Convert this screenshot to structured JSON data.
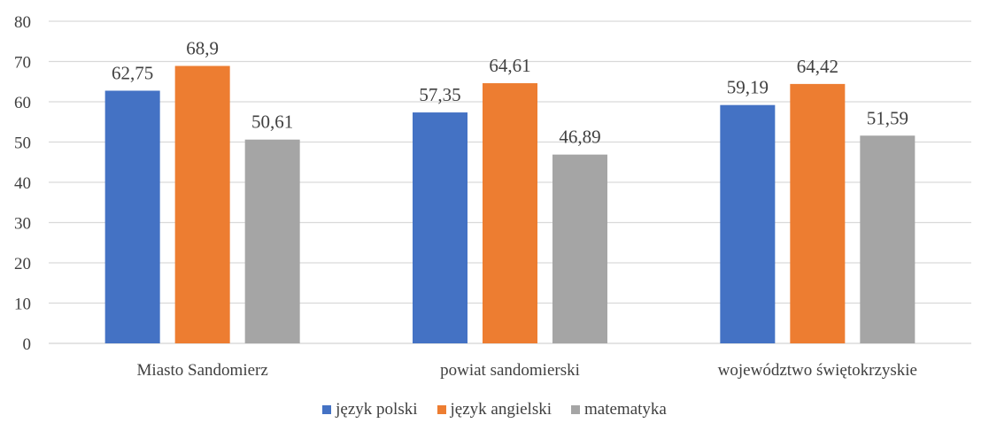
{
  "chart_data": {
    "type": "bar",
    "categories": [
      "Miasto Sandomierz",
      "powiat sandomierski",
      "województwo świętokrzyskie"
    ],
    "series": [
      {
        "name": "język polski",
        "color": "#4472C4",
        "values": [
          62.75,
          57.35,
          59.19
        ],
        "labels": [
          "62,75",
          "57,35",
          "59,19"
        ]
      },
      {
        "name": "język angielski",
        "color": "#ED7D31",
        "values": [
          68.9,
          64.61,
          64.42
        ],
        "labels": [
          "68,9",
          "64,61",
          "64,42"
        ]
      },
      {
        "name": "matematyka",
        "color": "#A5A5A5",
        "values": [
          50.61,
          46.89,
          51.59
        ],
        "labels": [
          "50,61",
          "46,89",
          "51,59"
        ]
      }
    ],
    "title": "",
    "xlabel": "",
    "ylabel": "",
    "ylim": [
      0,
      80
    ],
    "yticks": [
      "0",
      "10",
      "20",
      "30",
      "40",
      "50",
      "60",
      "70",
      "80"
    ],
    "grid": true,
    "legend_position": "bottom"
  }
}
